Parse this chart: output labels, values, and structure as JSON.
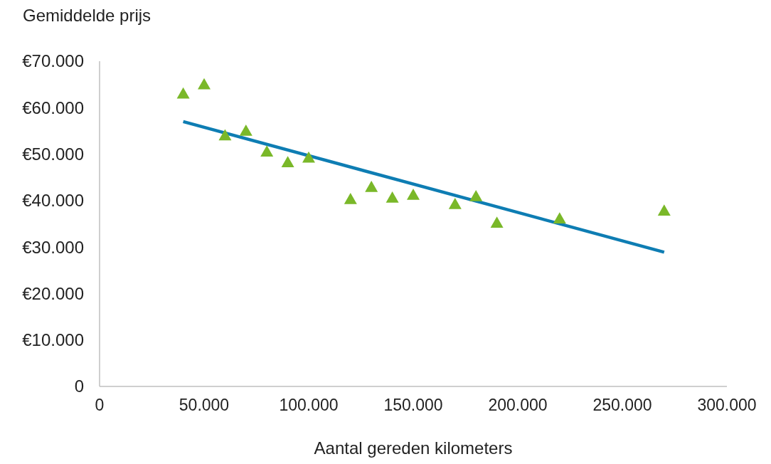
{
  "chart_data": {
    "type": "scatter",
    "xlabel": "Aantal gereden kilometers",
    "ylabel": "Gemiddelde prijs",
    "xlim": [
      0,
      300000
    ],
    "ylim": [
      0,
      70000
    ],
    "xticks": [
      0,
      {
        "value": 50000,
        "label": "50.000"
      },
      {
        "value": 100000,
        "label": "100.000"
      },
      {
        "value": 150000,
        "label": "150.000"
      },
      {
        "value": 200000,
        "label": "200.000"
      },
      {
        "value": 250000,
        "label": "250.000"
      },
      {
        "value": 300000,
        "label": "300.000"
      }
    ],
    "yticks": [
      0,
      {
        "value": 10000,
        "label": "€10.000"
      },
      {
        "value": 20000,
        "label": "€20.000"
      },
      {
        "value": 30000,
        "label": "€30.000"
      },
      {
        "value": 40000,
        "label": "€40.000"
      },
      {
        "value": 50000,
        "label": "€50.000"
      },
      {
        "value": 60000,
        "label": "€60.000"
      },
      {
        "value": 70000,
        "label": "€70.000"
      }
    ],
    "grid": false,
    "marker": "triangle",
    "series": [
      {
        "color": "#7ab829",
        "x": [
          40000,
          50000,
          60000,
          70000,
          80000,
          90000,
          100000,
          120000,
          130000,
          140000,
          150000,
          170000,
          180000,
          190000,
          220000,
          270000
        ],
        "values": [
          63000,
          65000,
          54000,
          55000,
          50500,
          48200,
          49200,
          40300,
          42900,
          40600,
          41200,
          39200,
          40900,
          35200,
          36100,
          37800
        ]
      },
      {
        "type": "line",
        "color": "#0e7db3",
        "marker": "none",
        "line_style": "solid",
        "x": [
          40000,
          270000
        ],
        "values": [
          57000,
          28900
        ]
      }
    ]
  }
}
